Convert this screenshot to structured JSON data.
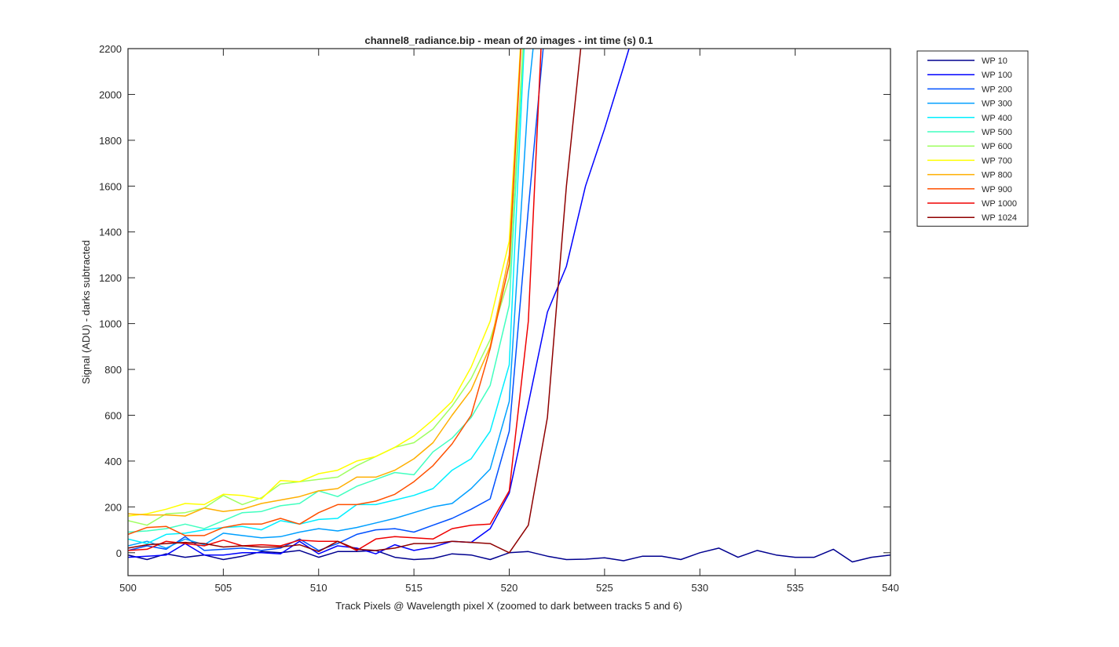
{
  "chart_data": {
    "type": "line",
    "title": "channel8_radiance.bip - mean of 20 images - int time (s) 0.1",
    "xlabel": "Track Pixels @ Wavelength pixel X  (zoomed to dark between tracks 5 and 6)",
    "ylabel": "Signal (ADU) - darks subtracted",
    "xlim": [
      500,
      540
    ],
    "ylim": [
      -100,
      2200
    ],
    "xticks": [
      500,
      505,
      510,
      515,
      520,
      525,
      530,
      535,
      540
    ],
    "yticks": [
      0,
      200,
      400,
      600,
      800,
      1000,
      1200,
      1400,
      1600,
      1800,
      2000,
      2200
    ],
    "grid": false,
    "legend_position": "outside-top-right",
    "series": [
      {
        "name": "WP 10",
        "color": "#00008f",
        "x": [
          500,
          501,
          502,
          503,
          504,
          505,
          506,
          507,
          508,
          509,
          510,
          511,
          512,
          513,
          514,
          515,
          516,
          517,
          518,
          519,
          520,
          521,
          522,
          523,
          524,
          525,
          526,
          527,
          528,
          529,
          530,
          531,
          532,
          533,
          534,
          535,
          536,
          537,
          538,
          539,
          540
        ],
        "y": [
          -10,
          -30,
          -5,
          -20,
          -10,
          -30,
          -15,
          5,
          0,
          10,
          -20,
          5,
          5,
          10,
          -20,
          -30,
          -25,
          -5,
          -10,
          -30,
          0,
          5,
          -15,
          -30,
          -28,
          -22,
          -35,
          -15,
          -15,
          -30,
          0,
          20,
          -20,
          10,
          -10,
          -20,
          -20,
          15,
          -40,
          -20,
          -10
        ]
      },
      {
        "name": "WP 100",
        "color": "#0000ff",
        "x": [
          500,
          501,
          502,
          503,
          504,
          505,
          506,
          507,
          508,
          509,
          510,
          511,
          512,
          513,
          514,
          515,
          516,
          517,
          518,
          519,
          520,
          521,
          522,
          523,
          524,
          525,
          526,
          527
        ],
        "y": [
          -20,
          -15,
          -10,
          40,
          -10,
          -10,
          0,
          0,
          -5,
          50,
          -5,
          30,
          20,
          -5,
          35,
          10,
          25,
          50,
          45,
          105,
          260,
          650,
          1050,
          1250,
          1600,
          1850,
          2120,
          2400
        ]
      },
      {
        "name": "WP 200",
        "color": "#0050ff",
        "x": [
          500,
          501,
          502,
          503,
          504,
          505,
          506,
          507,
          508,
          509,
          510,
          511,
          512,
          513,
          514,
          515,
          516,
          517,
          518,
          519,
          520,
          521,
          522
        ],
        "y": [
          10,
          30,
          15,
          70,
          10,
          15,
          20,
          10,
          20,
          60,
          10,
          40,
          80,
          100,
          105,
          90,
          120,
          150,
          190,
          235,
          530,
          1500,
          2400
        ]
      },
      {
        "name": "WP 300",
        "color": "#009fff",
        "x": [
          500,
          501,
          502,
          503,
          504,
          505,
          506,
          507,
          508,
          509,
          510,
          511,
          512,
          513,
          514,
          515,
          516,
          517,
          518,
          519,
          520,
          521,
          522
        ],
        "y": [
          30,
          50,
          20,
          60,
          35,
          85,
          75,
          65,
          70,
          90,
          105,
          95,
          110,
          130,
          150,
          175,
          200,
          215,
          280,
          365,
          660,
          2000,
          2800
        ]
      },
      {
        "name": "WP 400",
        "color": "#00efff",
        "x": [
          500,
          501,
          502,
          503,
          504,
          505,
          506,
          507,
          508,
          509,
          510,
          511,
          512,
          513,
          514,
          515,
          516,
          517,
          518,
          519,
          520,
          521
        ],
        "y": [
          60,
          40,
          80,
          85,
          100,
          110,
          115,
          100,
          140,
          125,
          145,
          150,
          210,
          210,
          230,
          250,
          280,
          360,
          410,
          530,
          820,
          2600
        ]
      },
      {
        "name": "WP 500",
        "color": "#40ffbf",
        "x": [
          500,
          501,
          502,
          503,
          504,
          505,
          506,
          507,
          508,
          509,
          510,
          511,
          512,
          513,
          514,
          515,
          516,
          517,
          518,
          519,
          520,
          521
        ],
        "y": [
          90,
          95,
          105,
          125,
          105,
          140,
          175,
          180,
          205,
          215,
          270,
          245,
          290,
          320,
          350,
          340,
          440,
          500,
          590,
          730,
          1080,
          2600
        ]
      },
      {
        "name": "WP 600",
        "color": "#9fff60",
        "x": [
          500,
          501,
          502,
          503,
          504,
          505,
          506,
          507,
          508,
          509,
          510,
          511,
          512,
          513,
          514,
          515,
          516,
          517,
          518,
          519,
          520,
          521
        ],
        "y": [
          140,
          120,
          170,
          175,
          195,
          250,
          210,
          240,
          300,
          310,
          320,
          330,
          380,
          420,
          460,
          480,
          540,
          640,
          760,
          930,
          1200,
          2600
        ]
      },
      {
        "name": "WP 700",
        "color": "#ffff00",
        "x": [
          500,
          501,
          502,
          503,
          504,
          505,
          506,
          507,
          508,
          509,
          510,
          511,
          512,
          513,
          514,
          515,
          516,
          517,
          518,
          519,
          520,
          521
        ],
        "y": [
          160,
          170,
          190,
          215,
          210,
          255,
          250,
          235,
          315,
          310,
          345,
          360,
          400,
          420,
          460,
          510,
          580,
          660,
          810,
          1010,
          1360,
          2800
        ]
      },
      {
        "name": "WP 800",
        "color": "#ffaf00",
        "x": [
          500,
          501,
          502,
          503,
          504,
          505,
          506,
          507,
          508,
          509,
          510,
          511,
          512,
          513,
          514,
          515,
          516,
          517,
          518,
          519,
          520,
          521
        ],
        "y": [
          170,
          165,
          165,
          160,
          195,
          180,
          190,
          215,
          230,
          245,
          270,
          280,
          330,
          330,
          360,
          410,
          480,
          600,
          710,
          900,
          1300,
          2800
        ]
      },
      {
        "name": "WP 900",
        "color": "#ff5000",
        "x": [
          500,
          501,
          502,
          503,
          504,
          505,
          506,
          507,
          508,
          509,
          510,
          511,
          512,
          513,
          514,
          515,
          516,
          517,
          518,
          519,
          520,
          521
        ],
        "y": [
          80,
          110,
          115,
          75,
          75,
          110,
          125,
          125,
          150,
          125,
          175,
          210,
          210,
          225,
          255,
          310,
          380,
          475,
          600,
          890,
          1260,
          2800
        ]
      },
      {
        "name": "WP 1000",
        "color": "#ef0000",
        "x": [
          500,
          501,
          502,
          503,
          504,
          505,
          506,
          507,
          508,
          509,
          510,
          511,
          512,
          513,
          514,
          515,
          516,
          517,
          518,
          519,
          520,
          521,
          522
        ],
        "y": [
          10,
          15,
          50,
          40,
          30,
          55,
          30,
          35,
          30,
          55,
          50,
          50,
          10,
          60,
          70,
          65,
          60,
          105,
          120,
          125,
          270,
          1010,
          2800
        ]
      },
      {
        "name": "WP 1024",
        "color": "#8f0000",
        "x": [
          500,
          501,
          502,
          503,
          504,
          505,
          506,
          507,
          508,
          509,
          510,
          511,
          512,
          513,
          514,
          515,
          516,
          517,
          518,
          519,
          520,
          521,
          522,
          523,
          524
        ],
        "y": [
          20,
          35,
          40,
          45,
          40,
          25,
          30,
          25,
          25,
          35,
          5,
          50,
          15,
          10,
          20,
          40,
          40,
          50,
          45,
          40,
          0,
          120,
          590,
          1600,
          2400
        ]
      }
    ]
  }
}
